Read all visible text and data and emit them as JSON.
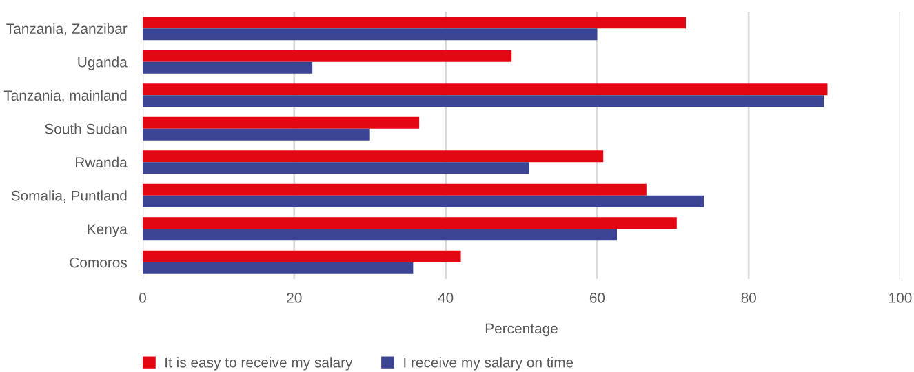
{
  "chart_data": {
    "type": "bar",
    "orientation": "horizontal",
    "categories": [
      "Tanzania, Zanzibar",
      "Uganda",
      "Tanzania, mainland",
      "South Sudan",
      "Rwanda",
      "Somalia, Puntland",
      "Kenya",
      "Comoros"
    ],
    "series": [
      {
        "name": "It is easy to receive my salary",
        "color": "#e30613",
        "values": [
          71.7,
          48.7,
          90.4,
          36.5,
          60.8,
          66.5,
          70.5,
          42.0
        ]
      },
      {
        "name": "I receive my salary on time",
        "color": "#3c4494",
        "values": [
          60.0,
          22.4,
          89.9,
          30.0,
          51.0,
          74.1,
          62.6,
          35.7
        ]
      }
    ],
    "xlabel": "Percentage",
    "xlim": [
      0,
      100
    ],
    "xticks": [
      0,
      20,
      40,
      60,
      80,
      100
    ],
    "grid": "x",
    "legend": "bottom"
  }
}
